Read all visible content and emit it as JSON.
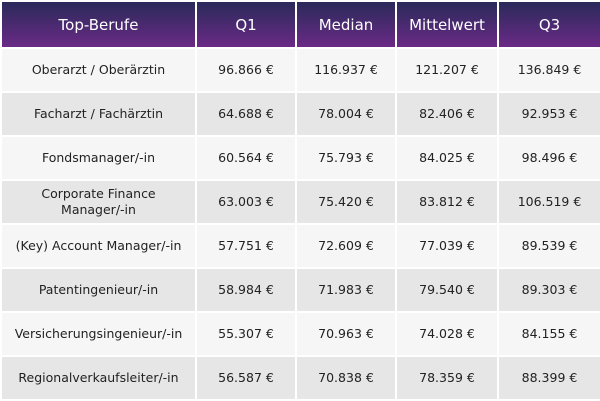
{
  "table": {
    "columns": [
      "Top-Berufe",
      "Q1",
      "Median",
      "Mittelwert",
      "Q3"
    ],
    "rows": [
      [
        "Oberarzt / Oberärztin",
        "96.866 €",
        "116.937 €",
        "121.207 €",
        "136.849 €"
      ],
      [
        "Facharzt / Fachärztin",
        "64.688 €",
        "78.004 €",
        "82.406 €",
        "92.953 €"
      ],
      [
        "Fondsmanager/-in",
        "60.564 €",
        "75.793 €",
        "84.025 €",
        "98.496 €"
      ],
      [
        "Corporate Finance Manager/-in",
        "63.003 €",
        "75.420 €",
        "83.812 €",
        "106.519 €"
      ],
      [
        "(Key) Account Manager/-in",
        "57.751 €",
        "72.609 €",
        "77.039 €",
        "89.539 €"
      ],
      [
        "Patentingenieur/-in",
        "58.984 €",
        "71.983 €",
        "79.540 €",
        "89.303 €"
      ],
      [
        "Versicherungsingenieur/-in",
        "55.307 €",
        "70.963 €",
        "74.028 €",
        "84.155 €"
      ],
      [
        "Regionalverkaufsleiter/-in",
        "56.587 €",
        "70.838 €",
        "78.359 €",
        "88.399 €"
      ]
    ]
  }
}
